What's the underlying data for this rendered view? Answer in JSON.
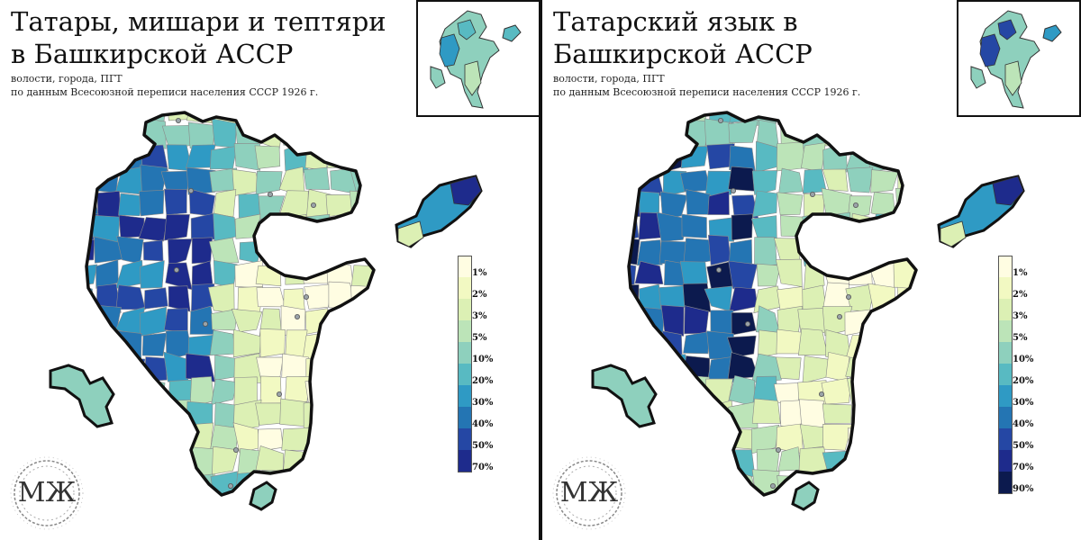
{
  "left": {
    "title": "Татары, мишари и тептяри в Башкирской АССР",
    "subtitle_line1": "волости, города, ПГТ",
    "subtitle_line2": "по данным Всесоюзной переписи населения СССР 1926 г.",
    "legend": [
      {
        "label": "1%",
        "color": "#fffde2"
      },
      {
        "label": "2%",
        "color": "#f2f9c2"
      },
      {
        "label": "3%",
        "color": "#dcf0b4"
      },
      {
        "label": "5%",
        "color": "#bce4b8"
      },
      {
        "label": "10%",
        "color": "#8ed0bd"
      },
      {
        "label": "20%",
        "color": "#58bac2"
      },
      {
        "label": "30%",
        "color": "#2f9ac4"
      },
      {
        "label": "40%",
        "color": "#2475b3"
      },
      {
        "label": "50%",
        "color": "#2547a4"
      },
      {
        "label": "70%",
        "color": "#1e2b8c"
      }
    ]
  },
  "right": {
    "title": "Татарский язык в Башкирской АССР",
    "subtitle_line1": "волости, города, ПГТ",
    "subtitle_line2": "по данным Всесоюзной переписи населения СССР 1926 г.",
    "legend": [
      {
        "label": "1%",
        "color": "#fffde2"
      },
      {
        "label": "2%",
        "color": "#f2f9c2"
      },
      {
        "label": "3%",
        "color": "#dcf0b4"
      },
      {
        "label": "5%",
        "color": "#bce4b8"
      },
      {
        "label": "10%",
        "color": "#8ed0bd"
      },
      {
        "label": "20%",
        "color": "#58bac2"
      },
      {
        "label": "30%",
        "color": "#2f9ac4"
      },
      {
        "label": "40%",
        "color": "#2475b3"
      },
      {
        "label": "50%",
        "color": "#2547a4"
      },
      {
        "label": "70%",
        "color": "#1e2b8c"
      },
      {
        "label": "90%",
        "color": "#0c1a4e"
      }
    ]
  },
  "logo_text": "МЖ",
  "colors": {
    "outline": "#111111",
    "district_border": "#8a8a8a",
    "city_marker": "#9aa3a8"
  }
}
